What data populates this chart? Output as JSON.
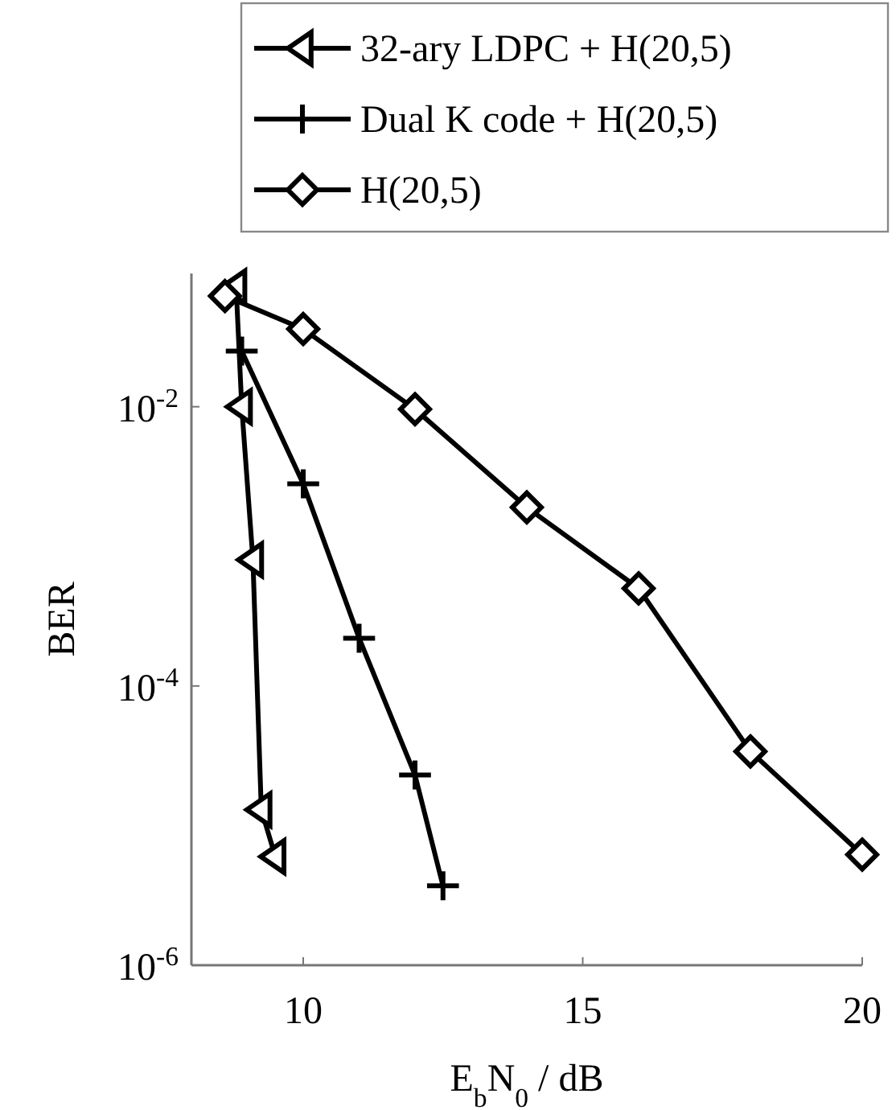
{
  "chart_data": {
    "type": "line",
    "xlabel": "E$_{b}$N$_{0}$ / dB",
    "ylabel": "BER",
    "log": "y",
    "xlim": [
      8,
      20
    ],
    "ylim": [
      1e-06,
      0.09
    ],
    "xticks": [
      10,
      15,
      20
    ],
    "yticks": [
      {
        "value": 1e-06,
        "label": "10$^{-6}$"
      },
      {
        "value": 0.0001,
        "label": "10$^{-4}$"
      },
      {
        "value": 0.01,
        "label": "10$^{-2}$"
      }
    ],
    "grid": false,
    "legend": "top",
    "line_style": "solid",
    "series": [
      {
        "name": "32-ary LDPC + H(20,5)",
        "color": "#000000",
        "marker": "triangle",
        "x": [
          8.8,
          8.9,
          9.1,
          9.25,
          9.5
        ],
        "values": [
          0.072,
          0.01,
          0.0008,
          1.3e-05,
          6e-06
        ]
      },
      {
        "name": "Dual K code + H(20,5)",
        "color": "#000000",
        "marker": "cross",
        "x": [
          8.9,
          10,
          11,
          12,
          12.5
        ],
        "values": [
          0.025,
          0.0028,
          0.00022,
          2.3e-05,
          3.7e-06
        ]
      },
      {
        "name": "H(20,5)",
        "color": "#000000",
        "marker": "diamond",
        "x": [
          8.6,
          10,
          12,
          14,
          16,
          18,
          20
        ],
        "values": [
          0.062,
          0.036,
          0.0096,
          0.0019,
          0.0005,
          3.4e-05,
          6.2e-06
        ]
      }
    ]
  }
}
